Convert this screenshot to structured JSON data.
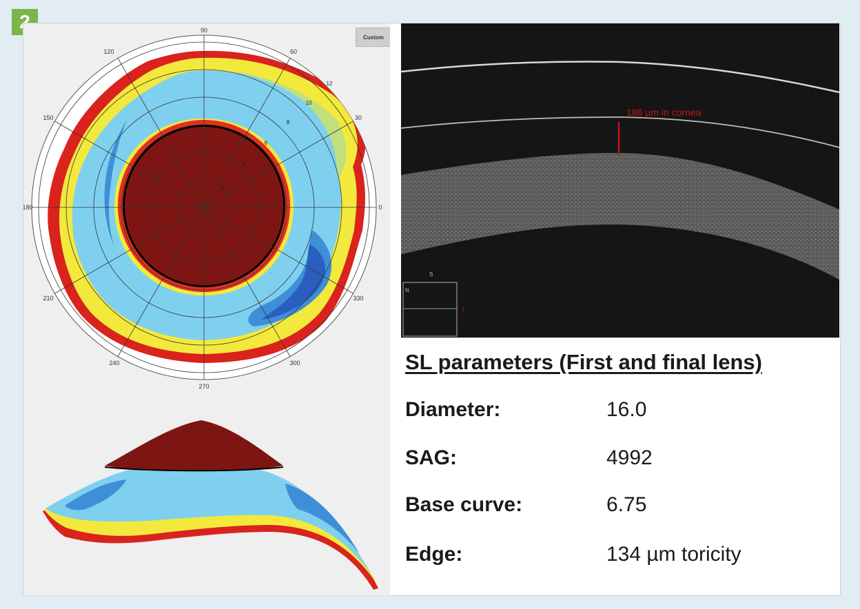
{
  "figure": {
    "badge": "2"
  },
  "topography": {
    "button_label": "Custom",
    "angle_labels": [
      "90",
      "60",
      "30",
      "0",
      "330",
      "300",
      "270",
      "240",
      "210",
      "180",
      "150",
      "120"
    ],
    "radius_labels": [
      "2",
      "4",
      "6",
      "8",
      "10",
      "12"
    ],
    "colors": {
      "dark_red": "#7d1612",
      "red": "#d9231c",
      "yellow": "#f0e63a",
      "light_blue": "#6bc7ec",
      "blue": "#2f66c4"
    }
  },
  "oct_image": {
    "measurement_label": "186 µm in cornea",
    "inset_labels": [
      "S",
      "N",
      "T"
    ],
    "marker_color": "#c0161a"
  },
  "parameters": {
    "title": "SL parameters (First and final lens)",
    "rows": [
      {
        "label": "Diameter:",
        "value": "16.0"
      },
      {
        "label": "SAG:",
        "value": "4992"
      },
      {
        "label": "Base curve:",
        "value": "6.75"
      },
      {
        "label": "Edge:",
        "value": "134 µm toricity"
      }
    ]
  }
}
